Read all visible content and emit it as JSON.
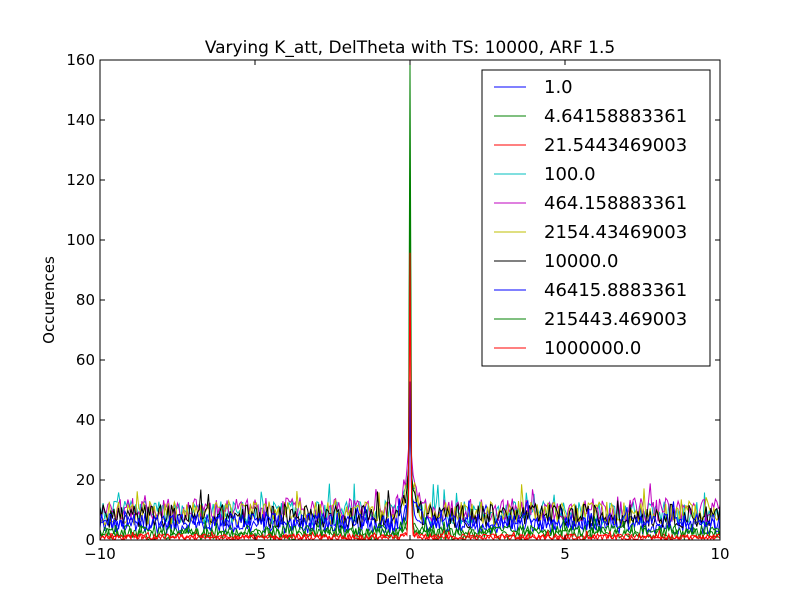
{
  "chart_data": {
    "type": "line",
    "title": "Varying K_att, DelTheta with TS: 10000, ARF 1.5",
    "xlabel": "DelTheta",
    "ylabel": "Occurences",
    "xlim": [
      -10,
      10
    ],
    "ylim": [
      0,
      160
    ],
    "xticks": [
      -10,
      -5,
      0,
      5,
      10
    ],
    "yticks": [
      0,
      20,
      40,
      60,
      80,
      100,
      120,
      140,
      160
    ],
    "grid": false,
    "legend_position": "top-right",
    "series": [
      {
        "name": "1.0",
        "color": "#0000ff",
        "baseline": 5,
        "noise": 3,
        "peak": 45
      },
      {
        "name": "4.64158883361",
        "color": "#008000",
        "baseline": 2,
        "noise": 2,
        "peak": 155
      },
      {
        "name": "21.5443469003",
        "color": "#ff0000",
        "baseline": 1,
        "noise": 1,
        "peak": 98
      },
      {
        "name": "100.0",
        "color": "#00bfbf",
        "baseline": 9,
        "noise": 4,
        "peak": 30
      },
      {
        "name": "464.158883361",
        "color": "#bf00bf",
        "baseline": 10,
        "noise": 4,
        "peak": 28
      },
      {
        "name": "2154.43469003",
        "color": "#bfbf00",
        "baseline": 9,
        "noise": 4,
        "peak": 32
      },
      {
        "name": "10000.0",
        "color": "#000000",
        "baseline": 8,
        "noise": 4,
        "peak": 35
      },
      {
        "name": "46415.8883361",
        "color": "#0000ff",
        "baseline": 6,
        "noise": 3,
        "peak": 40
      },
      {
        "name": "215443.469003",
        "color": "#008000",
        "baseline": 3,
        "noise": 2,
        "peak": 120
      },
      {
        "name": "1000000.0",
        "color": "#ff0000",
        "baseline": 1,
        "noise": 1,
        "peak": 95
      }
    ],
    "x_step": 0.05
  }
}
